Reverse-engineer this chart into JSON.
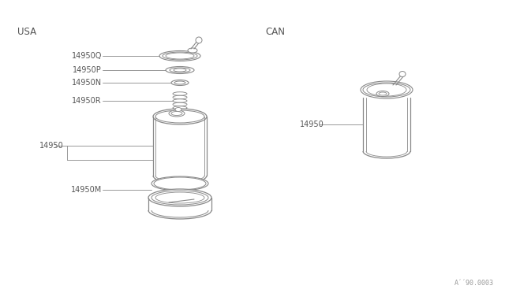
{
  "background_color": "#ffffff",
  "line_color": "#888888",
  "text_color": "#555555",
  "title_usa": "USA",
  "title_can": "CAN",
  "watermark": "A´´90.0003",
  "part_labels_usa": [
    "14950Q",
    "14950P",
    "14950N",
    "14950R",
    "14950",
    "14950M"
  ],
  "part_label_can": "14950",
  "label_font_size": 7,
  "title_font_size": 8.5
}
